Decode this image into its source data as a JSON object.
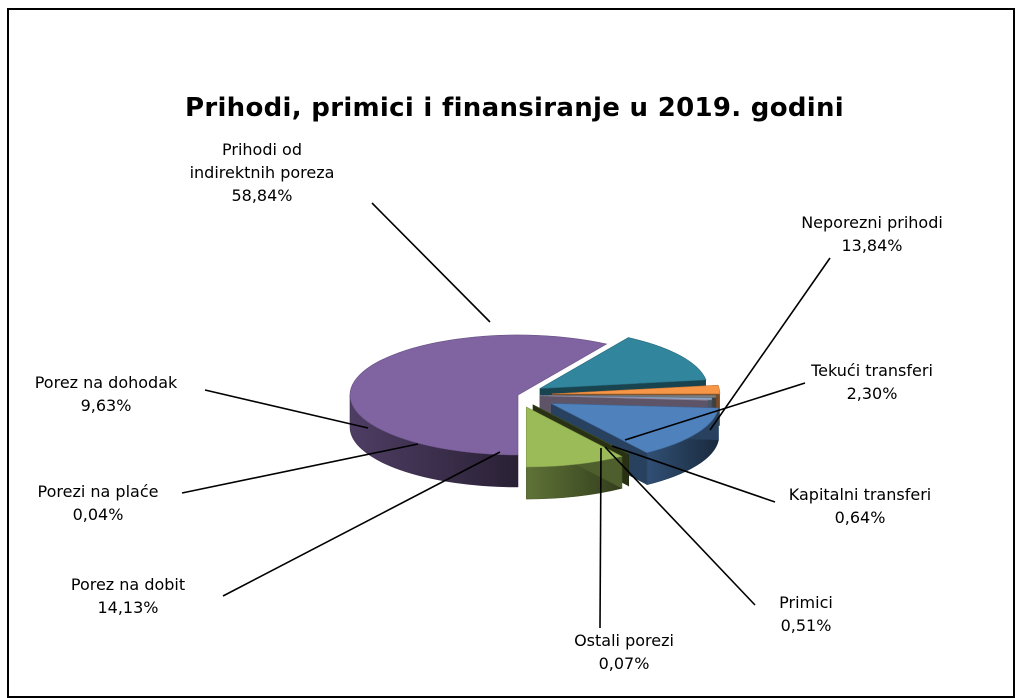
{
  "chart_data": {
    "type": "pie",
    "title": "Prihodi, primici i finansiranje u 2019.  godini",
    "slices": [
      {
        "name": "Prihodi od indirektnih poreza",
        "label_lines": [
          "Prihodi od",
          "indirektnih poreza"
        ],
        "value": 58.84,
        "value_label": "58,84%",
        "color": "#8064A2"
      },
      {
        "name": "Neporezni prihodi",
        "label_lines": [
          "Neporezni prihodi"
        ],
        "value": 13.84,
        "value_label": "13,84%",
        "color": "#31859C"
      },
      {
        "name": "Tekući transferi",
        "label_lines": [
          "Tekući transferi"
        ],
        "value": 2.3,
        "value_label": "2,30%",
        "color": "#F79646"
      },
      {
        "name": "Kapitalni transferi",
        "label_lines": [
          "Kapitalni transferi"
        ],
        "value": 0.64,
        "value_label": "0,64%",
        "color": "#7F7F7F"
      },
      {
        "name": "Primici",
        "label_lines": [
          "Primici"
        ],
        "value": 0.51,
        "value_label": "0,51%",
        "color": "#8EA9C8"
      },
      {
        "name": "Ostali porezi",
        "label_lines": [
          "Ostali porezi"
        ],
        "value": 0.07,
        "value_label": "0,07%",
        "color": "#B9A9CE"
      },
      {
        "name": "Porez na dobit",
        "label_lines": [
          "Porez na dobit"
        ],
        "value": 14.13,
        "value_label": "14,13%",
        "color": "#4F81BD"
      },
      {
        "name": "Porezi na plaće",
        "label_lines": [
          "Porezi na plaće"
        ],
        "value": 0.04,
        "value_label": "0,04%",
        "color": "#4F6228"
      },
      {
        "name": "Porez na dohodak",
        "label_lines": [
          "Porez na dohodak"
        ],
        "value": 9.63,
        "value_label": "9,63%",
        "color": "#9BBB59"
      }
    ]
  }
}
